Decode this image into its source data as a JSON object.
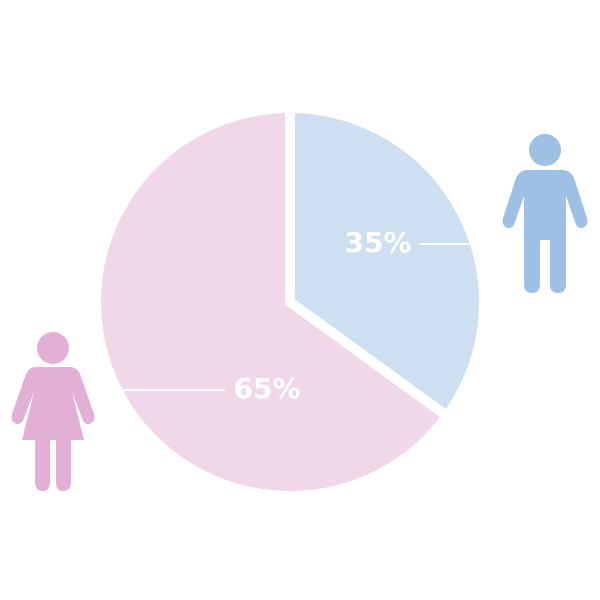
{
  "chart_data": {
    "type": "pie",
    "values": [
      35,
      65
    ],
    "value_labels": [
      "35%",
      "65%"
    ],
    "colors": [
      "#cddff0",
      "#f0d8e8"
    ]
  }
}
